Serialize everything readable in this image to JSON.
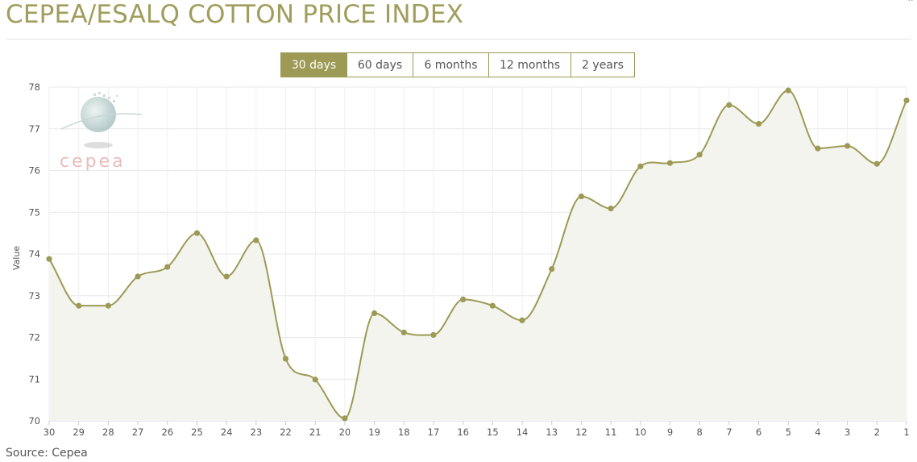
{
  "header": {
    "title": "CEPEA/ESALQ COTTON PRICE INDEX"
  },
  "tabs": [
    {
      "label": "30 days",
      "active": true
    },
    {
      "label": "60 days",
      "active": false
    },
    {
      "label": "6 months",
      "active": false
    },
    {
      "label": "12 months",
      "active": false
    },
    {
      "label": "2 years",
      "active": false
    }
  ],
  "logo": {
    "text": "cepea"
  },
  "footer": {
    "source": "Source: Cepea"
  },
  "colors": {
    "accent": "#9c9a55",
    "area": "#f4f4ef",
    "grid": "#e8e8e8"
  },
  "chart_data": {
    "type": "area",
    "ylabel": "Value",
    "xlabel": "",
    "ylim": [
      70,
      78
    ],
    "yticks": [
      70,
      71,
      72,
      73,
      74,
      75,
      76,
      77,
      78
    ],
    "grid": true,
    "categories": [
      "30",
      "29",
      "28",
      "27",
      "26",
      "25",
      "24",
      "23",
      "22",
      "21",
      "20",
      "19",
      "18",
      "17",
      "16",
      "15",
      "14",
      "13",
      "12",
      "11",
      "10",
      "9",
      "8",
      "7",
      "6",
      "5",
      "4",
      "3",
      "2",
      "1"
    ],
    "series": [
      {
        "values": [
          73.88,
          72.76,
          72.76,
          73.46,
          73.69,
          74.5,
          73.46,
          74.33,
          71.49,
          70.99,
          70.06,
          72.58,
          72.12,
          72.06,
          72.91,
          72.76,
          72.41,
          73.64,
          75.38,
          75.09,
          76.1,
          76.18,
          76.38,
          77.57,
          77.12,
          77.92,
          76.53,
          76.59,
          76.16,
          77.68
        ]
      }
    ]
  }
}
